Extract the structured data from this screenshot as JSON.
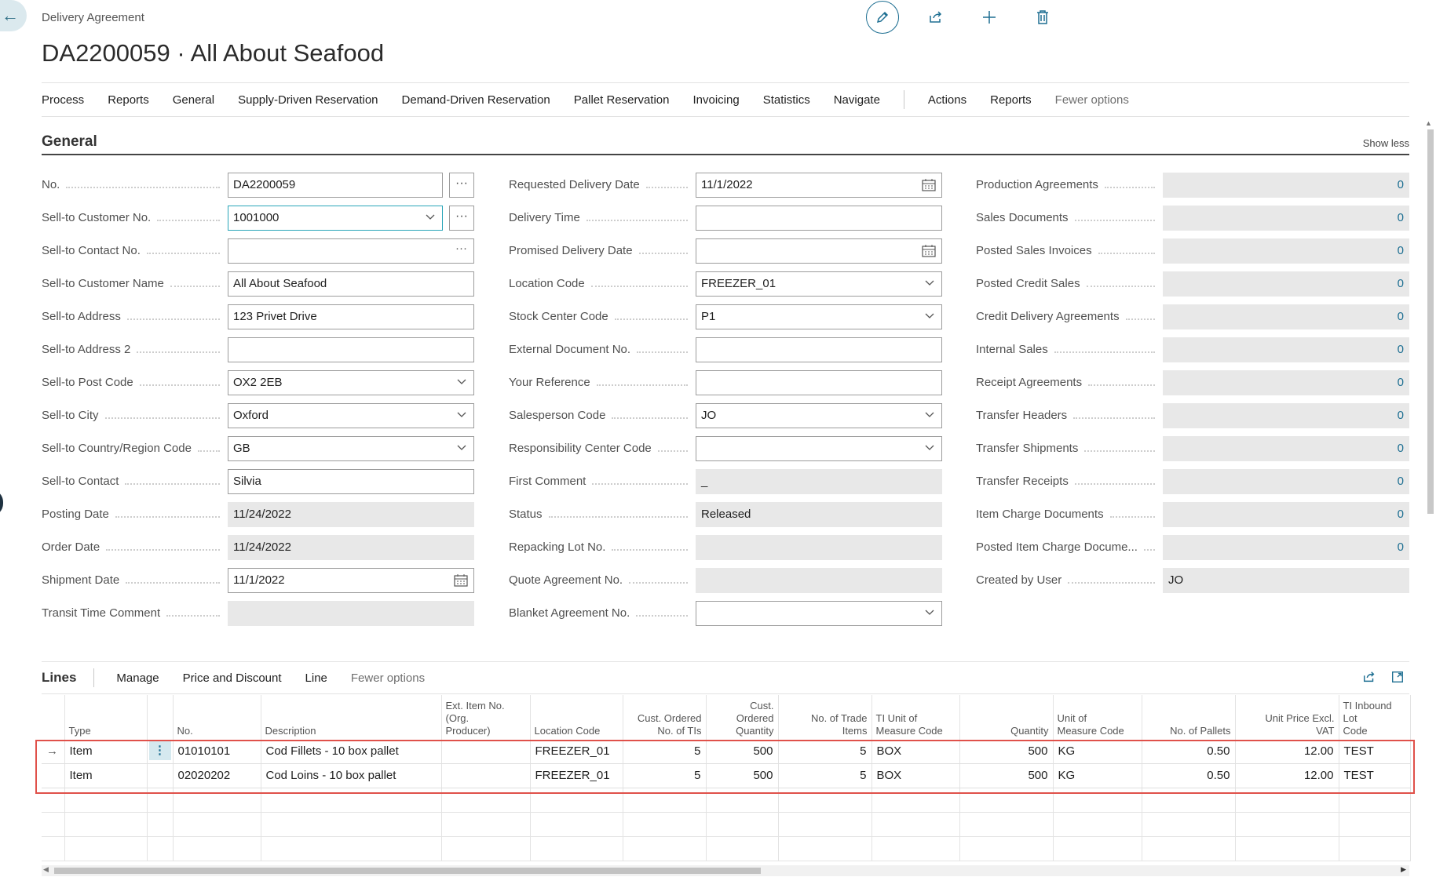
{
  "breadcrumb": "Delivery Agreement",
  "page_title": "DA2200059 · All About Seafood",
  "menu": {
    "items": [
      "Process",
      "Reports",
      "General",
      "Supply-Driven Reservation",
      "Demand-Driven Reservation",
      "Pallet Reservation",
      "Invoicing",
      "Statistics",
      "Navigate"
    ],
    "after_sep": [
      "Actions",
      "Reports"
    ],
    "fewer_options": "Fewer options"
  },
  "general": {
    "title": "General",
    "show_less": "Show less",
    "col1": [
      {
        "label": "No.",
        "value": "DA2200059",
        "kind": "text",
        "btn": "···"
      },
      {
        "label": "Sell-to Customer No.",
        "value": "1001000",
        "kind": "select-focus",
        "btn": "···"
      },
      {
        "label": "Sell-to Contact No.",
        "value": "",
        "kind": "lookup"
      },
      {
        "label": "Sell-to Customer Name",
        "value": "All About Seafood",
        "kind": "text"
      },
      {
        "label": "Sell-to Address",
        "value": "123 Privet Drive",
        "kind": "text"
      },
      {
        "label": "Sell-to Address 2",
        "value": "",
        "kind": "text"
      },
      {
        "label": "Sell-to Post Code",
        "value": "OX2 2EB",
        "kind": "select"
      },
      {
        "label": "Sell-to City",
        "value": "Oxford",
        "kind": "select"
      },
      {
        "label": "Sell-to Country/Region Code",
        "value": "GB",
        "kind": "select"
      },
      {
        "label": "Sell-to Contact",
        "value": "Silvia",
        "kind": "text"
      },
      {
        "label": "Posting Date",
        "value": "11/24/2022",
        "kind": "ro"
      },
      {
        "label": "Order Date",
        "value": "11/24/2022",
        "kind": "ro"
      },
      {
        "label": "Shipment Date",
        "value": "11/1/2022",
        "kind": "date"
      },
      {
        "label": "Transit Time Comment",
        "value": "",
        "kind": "ro"
      }
    ],
    "col2": [
      {
        "label": "Requested Delivery Date",
        "value": "11/1/2022",
        "kind": "date"
      },
      {
        "label": "Delivery Time",
        "value": "",
        "kind": "text"
      },
      {
        "label": "Promised Delivery Date",
        "value": "",
        "kind": "date"
      },
      {
        "label": "Location Code",
        "value": "FREEZER_01",
        "kind": "select"
      },
      {
        "label": "Stock Center Code",
        "value": "P1",
        "kind": "select"
      },
      {
        "label": "External Document No.",
        "value": "",
        "kind": "text"
      },
      {
        "label": "Your Reference",
        "value": "",
        "kind": "text"
      },
      {
        "label": "Salesperson Code",
        "value": "JO",
        "kind": "select"
      },
      {
        "label": "Responsibility Center Code",
        "value": "",
        "kind": "select"
      },
      {
        "label": "First Comment",
        "value": "_",
        "kind": "ro"
      },
      {
        "label": "Status",
        "value": "Released",
        "kind": "ro"
      },
      {
        "label": "Repacking Lot No.",
        "value": "",
        "kind": "ro"
      },
      {
        "label": "Quote Agreement No.",
        "value": "",
        "kind": "ro"
      },
      {
        "label": "Blanket Agreement No.",
        "value": "",
        "kind": "select"
      }
    ],
    "col3": [
      {
        "label": "Production Agreements",
        "value": "0",
        "kind": "num"
      },
      {
        "label": "Sales Documents",
        "value": "0",
        "kind": "num"
      },
      {
        "label": "Posted Sales Invoices",
        "value": "0",
        "kind": "num"
      },
      {
        "label": "Posted Credit Sales",
        "value": "0",
        "kind": "num"
      },
      {
        "label": "Credit Delivery Agreements",
        "value": "0",
        "kind": "num"
      },
      {
        "label": "Internal Sales",
        "value": "0",
        "kind": "num"
      },
      {
        "label": "Receipt Agreements",
        "value": "0",
        "kind": "num"
      },
      {
        "label": "Transfer Headers",
        "value": "0",
        "kind": "num"
      },
      {
        "label": "Transfer Shipments",
        "value": "0",
        "kind": "num"
      },
      {
        "label": "Transfer Receipts",
        "value": "0",
        "kind": "num"
      },
      {
        "label": "Item Charge Documents",
        "value": "0",
        "kind": "num"
      },
      {
        "label": "Posted Item Charge Docume...",
        "value": "0",
        "kind": "num"
      },
      {
        "label": "Created by User",
        "value": "JO",
        "kind": "ro"
      }
    ]
  },
  "lines": {
    "title": "Lines",
    "actions": [
      "Manage",
      "Price and Discount",
      "Line"
    ],
    "fewer_options": "Fewer options",
    "columns": [
      {
        "label": "Type",
        "align": "l"
      },
      {
        "label": "",
        "align": "l"
      },
      {
        "label": "No.",
        "align": "l"
      },
      {
        "label": "Description",
        "align": "l"
      },
      {
        "label": "Ext. Item No.\n(Org.\nProducer)",
        "align": "l"
      },
      {
        "label": "Location Code",
        "align": "l"
      },
      {
        "label": "Cust. Ordered\nNo. of TIs",
        "align": "r"
      },
      {
        "label": "Cust.\nOrdered\nQuantity",
        "align": "r"
      },
      {
        "label": "No. of Trade\nItems",
        "align": "r"
      },
      {
        "label": "TI Unit of\nMeasure Code",
        "align": "l"
      },
      {
        "label": "Quantity",
        "align": "r"
      },
      {
        "label": "Unit of\nMeasure Code",
        "align": "l"
      },
      {
        "label": "No. of Pallets",
        "align": "r"
      },
      {
        "label": "Unit Price Excl.\nVAT",
        "align": "r"
      },
      {
        "label": "TI Inbound Lot\nCode",
        "align": "l"
      }
    ],
    "rows": [
      {
        "type": "Item",
        "no": "01010101",
        "description": "Cod Fillets - 10 box pallet",
        "ext_item_no": "",
        "location": "FREEZER_01",
        "cust_ordered_tis": "5",
        "cust_ordered_qty": "500",
        "trade_items": "5",
        "ti_uom": "BOX",
        "quantity": "500",
        "uom": "KG",
        "pallets": "0.50",
        "unit_price": "12.00",
        "lot_code": "TEST"
      },
      {
        "type": "Item",
        "no": "02020202",
        "description": "Cod Loins - 10 box pallet",
        "ext_item_no": "",
        "location": "FREEZER_01",
        "cust_ordered_tis": "5",
        "cust_ordered_qty": "500",
        "trade_items": "5",
        "ti_uom": "BOX",
        "quantity": "500",
        "uom": "KG",
        "pallets": "0.50",
        "unit_price": "12.00",
        "lot_code": "TEST"
      }
    ]
  }
}
